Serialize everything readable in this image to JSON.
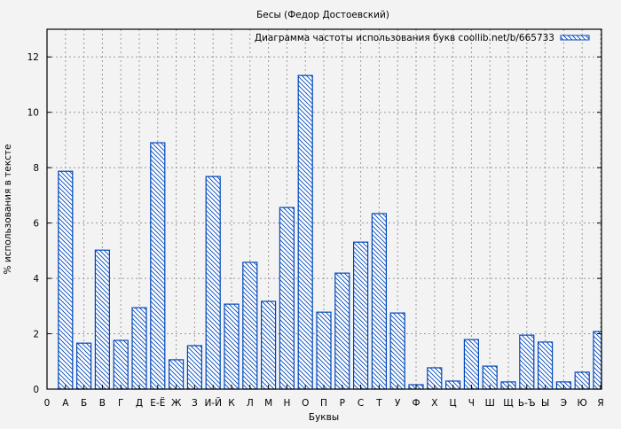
{
  "chart_data": {
    "type": "bar",
    "title": "Бесы (Федор Достоевский)",
    "xlabel": "Буквы",
    "ylabel": "% использования в тексте",
    "x_origin_label": "0",
    "categories": [
      "А",
      "Б",
      "В",
      "Г",
      "Д",
      "Е-Ё",
      "Ж",
      "З",
      "И-Й",
      "К",
      "Л",
      "М",
      "Н",
      "О",
      "П",
      "Р",
      "С",
      "Т",
      "У",
      "Ф",
      "Х",
      "Ц",
      "Ч",
      "Ш",
      "Щ",
      "Ь-Ъ",
      "Ы",
      "Э",
      "Ю",
      "Я"
    ],
    "series": [
      {
        "name": "Диаграмма частоты использования букв coollib.net/b/665733",
        "values": [
          7.87,
          1.66,
          5.02,
          1.76,
          2.94,
          8.9,
          1.06,
          1.57,
          7.68,
          3.07,
          4.58,
          3.17,
          6.56,
          11.33,
          2.78,
          4.19,
          5.31,
          6.34,
          2.75,
          0.16,
          0.77,
          0.29,
          1.79,
          0.83,
          0.26,
          1.95,
          1.7,
          0.26,
          0.61,
          2.08
        ]
      }
    ],
    "ylim": [
      0,
      13
    ],
    "yticks": [
      0,
      2,
      4,
      6,
      8,
      10,
      12
    ],
    "grid": true,
    "legend_position": "top-right",
    "colors": {
      "bar_stroke": "#0047bb",
      "bar_fill": "#ffffff",
      "hatch": "#0047bb",
      "grid": "#999999",
      "background": "#f3f3f3"
    }
  }
}
